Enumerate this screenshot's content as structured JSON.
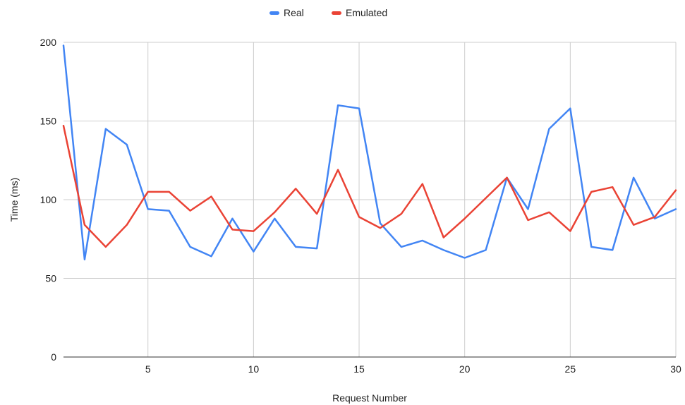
{
  "chart_data": {
    "type": "line",
    "title": "",
    "xlabel": "Request Number",
    "ylabel": "Time (ms)",
    "xlim": [
      1,
      30
    ],
    "ylim": [
      0,
      200
    ],
    "x_ticks": [
      5,
      10,
      15,
      20,
      25,
      30
    ],
    "y_ticks": [
      0,
      50,
      100,
      150,
      200
    ],
    "grid": true,
    "legend_position": "top-center",
    "x": [
      1,
      2,
      3,
      4,
      5,
      6,
      7,
      8,
      9,
      10,
      11,
      12,
      13,
      14,
      15,
      16,
      17,
      18,
      19,
      20,
      21,
      22,
      23,
      24,
      25,
      26,
      27,
      28,
      29,
      30
    ],
    "series": [
      {
        "name": "Real",
        "color": "#4285f4",
        "values": [
          198,
          62,
          145,
          135,
          94,
          93,
          70,
          64,
          88,
          67,
          88,
          70,
          69,
          160,
          158,
          85,
          70,
          74,
          68,
          63,
          68,
          114,
          94,
          145,
          158,
          70,
          68,
          114,
          88,
          94
        ]
      },
      {
        "name": "Emulated",
        "color": "#ea4335",
        "values": [
          147,
          84,
          70,
          84,
          105,
          105,
          93,
          102,
          81,
          80,
          92,
          107,
          91,
          119,
          89,
          82,
          91,
          110,
          76,
          88,
          101,
          114,
          87,
          92,
          80,
          105,
          108,
          84,
          89,
          106
        ]
      }
    ]
  }
}
